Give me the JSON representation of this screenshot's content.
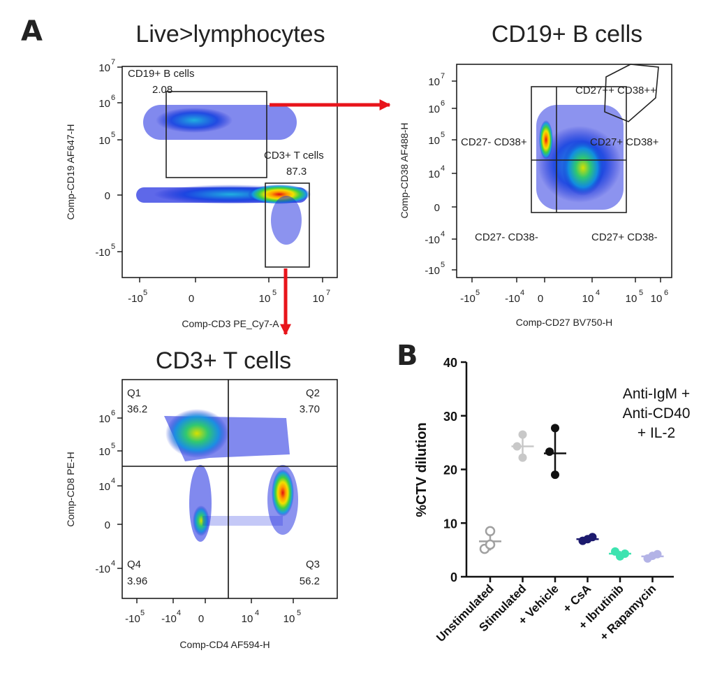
{
  "panel_labels": {
    "a": "A",
    "b": "B"
  },
  "colors": {
    "arrow": "#e8141b",
    "gate": "#111111"
  },
  "flow_plots": [
    {
      "id": "live",
      "title": "Live>lymphocytes",
      "xlabel": "Comp-CD3 PE_Cy7-A",
      "ylabel": "Comp-CD19 AF647-H",
      "xticks": [
        {
          "base": "-10",
          "exp": "5"
        },
        {
          "base": "0",
          "exp": ""
        },
        {
          "base": "10",
          "exp": "5"
        },
        {
          "base": "10",
          "exp": "7"
        }
      ],
      "yticks": [
        {
          "base": "10",
          "exp": "7"
        },
        {
          "base": "10",
          "exp": "6"
        },
        {
          "base": "10",
          "exp": "5"
        },
        {
          "base": "0",
          "exp": ""
        },
        {
          "base": "-10",
          "exp": "5"
        }
      ],
      "gates": [
        {
          "name": "CD19+ B cells",
          "value": "2.08"
        },
        {
          "name": "CD3+ T cells",
          "value": "87.3"
        }
      ]
    },
    {
      "id": "bcells",
      "title": "CD19+ B cells",
      "xlabel": "Comp-CD27 BV750-H",
      "ylabel": "Comp-CD38 AF488-H",
      "xticks": [
        {
          "base": "-10",
          "exp": "5"
        },
        {
          "base": "-10",
          "exp": "4"
        },
        {
          "base": "0",
          "exp": ""
        },
        {
          "base": "10",
          "exp": "4"
        },
        {
          "base": "10",
          "exp": "5"
        },
        {
          "base": "10",
          "exp": "6"
        }
      ],
      "yticks": [
        {
          "base": "10",
          "exp": "7"
        },
        {
          "base": "10",
          "exp": "6"
        },
        {
          "base": "10",
          "exp": "5"
        },
        {
          "base": "10",
          "exp": "4"
        },
        {
          "base": "0",
          "exp": ""
        },
        {
          "base": "-10",
          "exp": "4"
        },
        {
          "base": "-10",
          "exp": "5"
        }
      ],
      "quadrants": [
        "CD27++ CD38++",
        "CD27- CD38+",
        "CD27+ CD38+",
        "CD27- CD38-",
        "CD27+ CD38-"
      ]
    },
    {
      "id": "tcells",
      "title": "CD3+ T cells",
      "xlabel": "Comp-CD4 AF594-H",
      "ylabel": "Comp-CD8 PE-H",
      "xticks": [
        {
          "base": "-10",
          "exp": "5"
        },
        {
          "base": "-10",
          "exp": "4"
        },
        {
          "base": "0",
          "exp": ""
        },
        {
          "base": "10",
          "exp": "4"
        },
        {
          "base": "10",
          "exp": "5"
        }
      ],
      "yticks": [
        {
          "base": "10",
          "exp": "6"
        },
        {
          "base": "10",
          "exp": "5"
        },
        {
          "base": "10",
          "exp": "4"
        },
        {
          "base": "0",
          "exp": ""
        },
        {
          "base": "-10",
          "exp": "4"
        }
      ],
      "quadrants": [
        {
          "name": "Q1",
          "value": "36.2"
        },
        {
          "name": "Q2",
          "value": "3.70"
        },
        {
          "name": "Q4",
          "value": "3.96"
        },
        {
          "name": "Q3",
          "value": "56.2"
        }
      ]
    }
  ],
  "chart_data": {
    "type": "scatter",
    "ylabel": "%CTV dilution",
    "ylim": [
      0,
      40
    ],
    "yticks": [
      "0",
      "10",
      "20",
      "30",
      "40"
    ],
    "annotation": [
      "Anti-IgM +",
      "Anti-CD40",
      "+ IL-2"
    ],
    "categories": [
      "Unstimulated",
      "Stimulated",
      "+ Vehicle",
      "+ CsA",
      "+ Ibrutinib",
      "+ Rapamycin"
    ],
    "series": [
      {
        "category": "Unstimulated",
        "color": "#a0a0a0",
        "filled": false,
        "points": [
          8.5,
          5.2,
          6.0
        ],
        "mean": 6.6,
        "sd": 1.7
      },
      {
        "category": "Stimulated",
        "color": "#c8c8c8",
        "filled": true,
        "points": [
          26.5,
          24.3,
          22.2
        ],
        "mean": 24.3,
        "sd": 2.2
      },
      {
        "category": "+ Vehicle",
        "color": "#111111",
        "filled": true,
        "points": [
          27.7,
          23.3,
          19.0
        ],
        "mean": 23.0,
        "sd": 4.4
      },
      {
        "category": "+ CsA",
        "color": "#1c1a6e",
        "filled": true,
        "points": [
          6.7,
          7.0,
          7.4
        ],
        "mean": 7.0,
        "sd": 0.4
      },
      {
        "category": "+ Ibrutinib",
        "color": "#3ee3b0",
        "filled": true,
        "points": [
          4.7,
          3.8,
          4.3
        ],
        "mean": 4.3,
        "sd": 0.5
      },
      {
        "category": "+ Rapamycin",
        "color": "#b3b3e6",
        "filled": true,
        "points": [
          3.4,
          3.9,
          4.2
        ],
        "mean": 3.8,
        "sd": 0.4
      }
    ]
  }
}
